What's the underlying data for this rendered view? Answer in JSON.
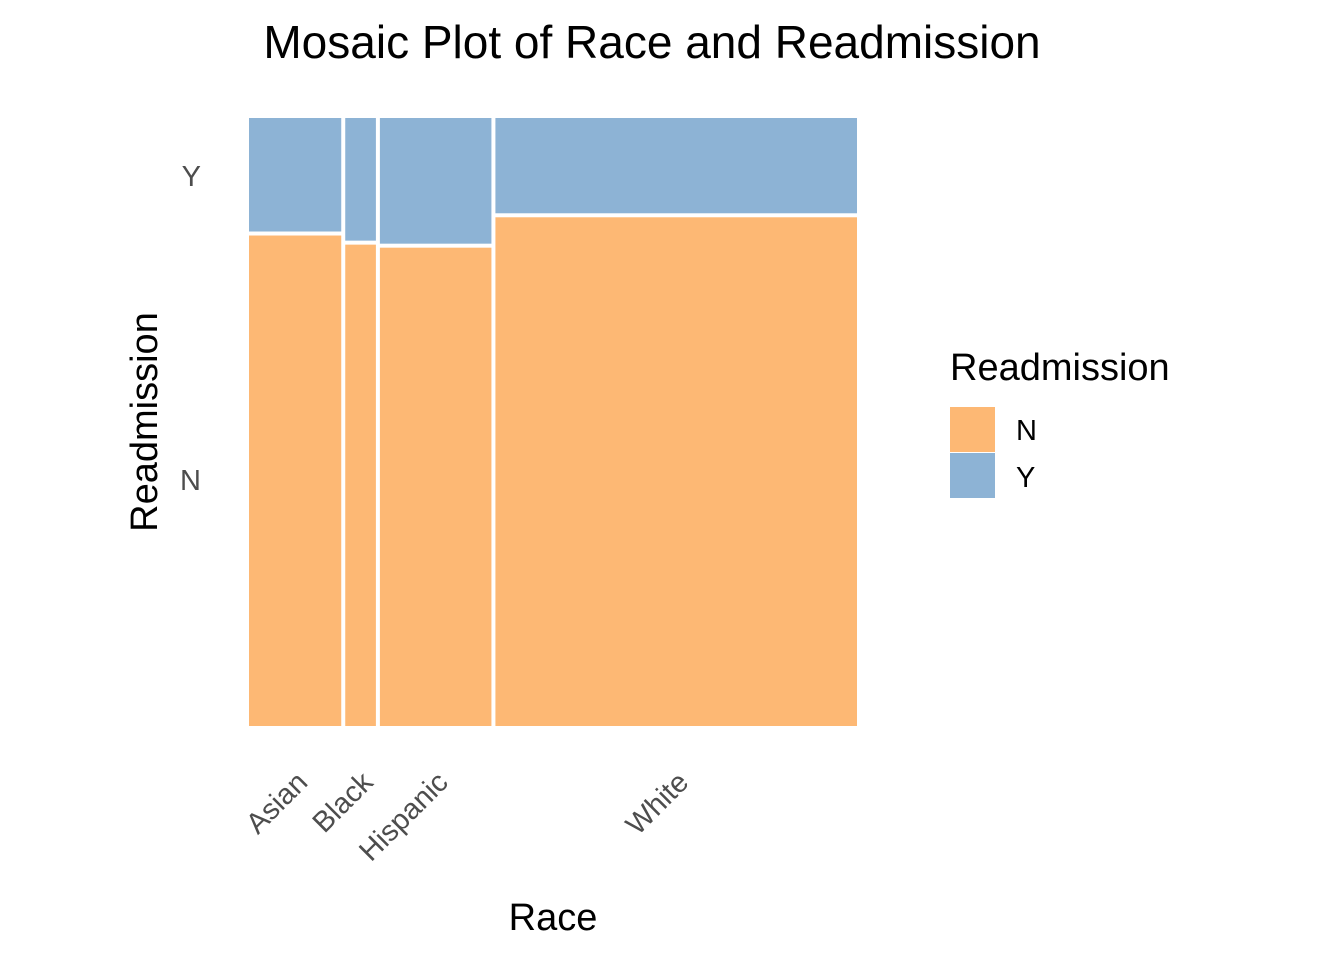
{
  "chart_data": {
    "type": "mosaic",
    "title": "Mosaic Plot of Race and Readmission",
    "xlabel": "Race",
    "ylabel": "Readmission",
    "categories": [
      "Asian",
      "Black",
      "Hispanic",
      "White"
    ],
    "category_proportions": [
      0.155,
      0.057,
      0.19,
      0.598
    ],
    "y_levels": [
      "N",
      "Y"
    ],
    "series": [
      {
        "name": "N",
        "color": "#fdb874",
        "values": [
          0.81,
          0.795,
          0.79,
          0.84
        ]
      },
      {
        "name": "Y",
        "color": "#8db3d5",
        "values": [
          0.19,
          0.205,
          0.21,
          0.16
        ]
      }
    ],
    "y_tick_labels": [
      "N",
      "Y"
    ],
    "legend": {
      "title": "Readmission",
      "position": "right",
      "entries": [
        {
          "label": "N",
          "color": "#fdb874"
        },
        {
          "label": "Y",
          "color": "#8db3d5"
        }
      ]
    },
    "grid": false
  }
}
